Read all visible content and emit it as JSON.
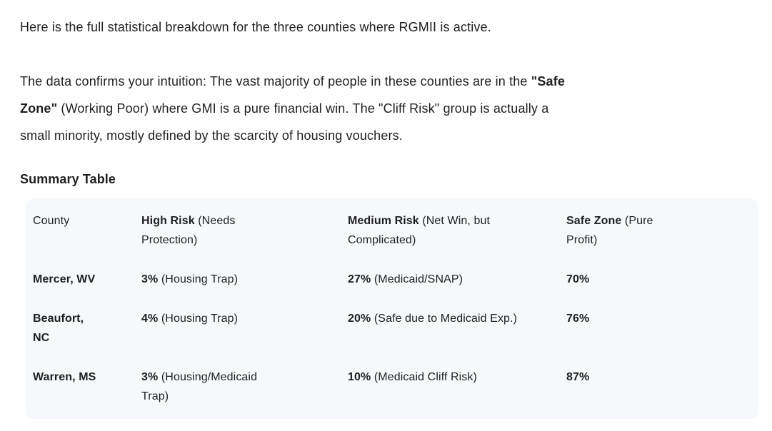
{
  "colors": {
    "background": "#ffffff",
    "text": "#1f1f1f",
    "table_background": "#f6f8fc"
  },
  "intro": {
    "text": "Here is the full statistical breakdown for the three counties where RGMII is active."
  },
  "analysis": {
    "line1_text": "The data confirms your intuition: The vast majority of people in these counties are in the ",
    "line1_bold": "\"Safe",
    "line2_bold": "Zone\"",
    "line2_text": " (Working Poor) where GMI is a pure financial win. The \"Cliff Risk\" group is actually a",
    "line3_text": "small minority, mostly defined by the scarcity of housing vouchers."
  },
  "section_heading": "Summary Table",
  "summary_table": {
    "header": {
      "county": "County",
      "high_risk_bold": "High Risk",
      "high_risk_note_line1": " (Needs",
      "high_risk_note_line2": "Protection)",
      "medium_risk_bold": "Medium Risk",
      "medium_risk_note_line1": " (Net Win, but",
      "medium_risk_note_line2": "Complicated)",
      "safe_zone_bold": "Safe Zone",
      "safe_zone_note_line1": " (Pure",
      "safe_zone_note_line2": "Profit)"
    },
    "rows": [
      {
        "county_line1": "Mercer, WV",
        "county_line2": "",
        "high_pct": "3%",
        "high_note_line1": " (Housing Trap)",
        "high_note_line2": "",
        "medium_pct": "27%",
        "medium_note": " (Medicaid/SNAP)",
        "safe_pct": "70%"
      },
      {
        "county_line1": "Beaufort,",
        "county_line2": "NC",
        "high_pct": "4%",
        "high_note_line1": " (Housing Trap)",
        "high_note_line2": "",
        "medium_pct": "20%",
        "medium_note": " (Safe due to Medicaid Exp.)",
        "safe_pct": "76%"
      },
      {
        "county_line1": "Warren, MS",
        "county_line2": "",
        "high_pct": "3%",
        "high_note_line1": " (Housing/Medicaid",
        "high_note_line2": "Trap)",
        "medium_pct": "10%",
        "medium_note": " (Medicaid Cliff Risk)",
        "safe_pct": "87%"
      }
    ]
  }
}
